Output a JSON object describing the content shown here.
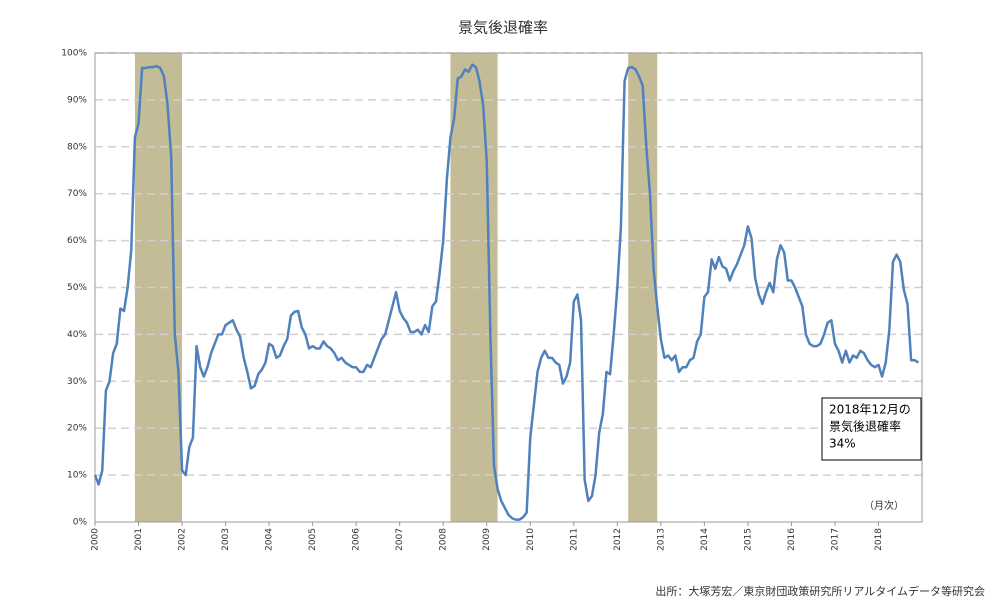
{
  "chart_data": {
    "type": "line",
    "title": "景気後退確率",
    "categories": [
      "2000",
      null,
      null,
      null,
      null,
      null,
      null,
      null,
      null,
      null,
      null,
      null,
      "2001",
      null,
      null,
      null,
      null,
      null,
      null,
      null,
      null,
      null,
      null,
      null,
      "2002",
      null,
      null,
      null,
      null,
      null,
      null,
      null,
      null,
      null,
      null,
      null,
      "2003",
      null,
      null,
      null,
      null,
      null,
      null,
      null,
      null,
      null,
      null,
      null,
      "2004",
      null,
      null,
      null,
      null,
      null,
      null,
      null,
      null,
      null,
      null,
      null,
      "2005",
      null,
      null,
      null,
      null,
      null,
      null,
      null,
      null,
      null,
      null,
      null,
      "2006",
      null,
      null,
      null,
      null,
      null,
      null,
      null,
      null,
      null,
      null,
      null,
      "2007",
      null,
      null,
      null,
      null,
      null,
      null,
      null,
      null,
      null,
      null,
      null,
      "2008",
      null,
      null,
      null,
      null,
      null,
      null,
      null,
      null,
      null,
      null,
      null,
      "2009",
      null,
      null,
      null,
      null,
      null,
      null,
      null,
      null,
      null,
      null,
      null,
      "2010",
      null,
      null,
      null,
      null,
      null,
      null,
      null,
      null,
      null,
      null,
      null,
      "2011",
      null,
      null,
      null,
      null,
      null,
      null,
      null,
      null,
      null,
      null,
      null,
      "2012",
      null,
      null,
      null,
      null,
      null,
      null,
      null,
      null,
      null,
      null,
      null,
      "2013",
      null,
      null,
      null,
      null,
      null,
      null,
      null,
      null,
      null,
      null,
      null,
      "2014",
      null,
      null,
      null,
      null,
      null,
      null,
      null,
      null,
      null,
      null,
      null,
      "2015",
      null,
      null,
      null,
      null,
      null,
      null,
      null,
      null,
      null,
      null,
      null,
      "2016",
      null,
      null,
      null,
      null,
      null,
      null,
      null,
      null,
      null,
      null,
      null,
      "2017",
      null,
      null,
      null,
      null,
      null,
      null,
      null,
      null,
      null,
      null,
      null,
      "2018",
      null,
      null,
      null,
      null,
      null,
      null,
      null,
      null,
      null,
      null,
      null
    ],
    "series": [
      {
        "color": "#4f81bd",
        "values": [
          10,
          8,
          11,
          28,
          30,
          36,
          38,
          45.5,
          45,
          50,
          58,
          82,
          85,
          96.8,
          96.8,
          97,
          97,
          97.2,
          96.8,
          95,
          89,
          78,
          40,
          32,
          11,
          10,
          16,
          18,
          37.5,
          33,
          31,
          33,
          36,
          38,
          40,
          40,
          42,
          42.5,
          43,
          41,
          39.5,
          35,
          32,
          28.5,
          29,
          31.5,
          32.5,
          34,
          38,
          37.5,
          35,
          35.5,
          37.5,
          39,
          44,
          44.8,
          45,
          41.5,
          40,
          37,
          37.5,
          37,
          37,
          38.5,
          37.5,
          37,
          36,
          34.5,
          35,
          34,
          33.5,
          33,
          33,
          32,
          32,
          33.5,
          33,
          35,
          37,
          39,
          40,
          43,
          46,
          49,
          45,
          43.5,
          42.5,
          40.5,
          40.5,
          41,
          40,
          42,
          40.5,
          46,
          47,
          53,
          60,
          73,
          82,
          86,
          94.5,
          95,
          96.5,
          96,
          97.5,
          97,
          94,
          89,
          77,
          40,
          12,
          7,
          4.5,
          3,
          1.5,
          0.8,
          0.5,
          0.5,
          1,
          2,
          18,
          25,
          32,
          35,
          36.5,
          35,
          35,
          34,
          33.5,
          29.5,
          31,
          34,
          47,
          48.5,
          43,
          9,
          4.5,
          5.5,
          10,
          19,
          23,
          32,
          31.5,
          40,
          50,
          63,
          94,
          96.8,
          97,
          96.5,
          95,
          93,
          80,
          70,
          54,
          46,
          39,
          35,
          35.5,
          34.5,
          35.5,
          32,
          33,
          33,
          34.5,
          35,
          38.5,
          40,
          48,
          49,
          56,
          54,
          56.5,
          54.5,
          54,
          51.5,
          53.5,
          55,
          57,
          59,
          63,
          60.5,
          52,
          48.5,
          46.5,
          49,
          51,
          49,
          56,
          59,
          57.5,
          51.5,
          51.5,
          50,
          48,
          46,
          40,
          38,
          37.5,
          37.5,
          38,
          40,
          42.5,
          43,
          38,
          36.5,
          34,
          36.5,
          34,
          35.5,
          35,
          36.5,
          36,
          34.5,
          33.5,
          33,
          33.5,
          31,
          34,
          41,
          55.5,
          57,
          55.5,
          49.5,
          46.5,
          34.5,
          34.5,
          34
        ]
      }
    ],
    "recessions": [
      [
        11,
        24
      ],
      [
        98,
        111
      ],
      [
        147,
        155
      ]
    ],
    "recession_color": "#c4bc96",
    "ylim": [
      0,
      100
    ],
    "yticks": [
      {
        "value": 0,
        "label": "0%"
      },
      {
        "value": 10,
        "label": "10%"
      },
      {
        "value": 20,
        "label": "20%"
      },
      {
        "value": 30,
        "label": "30%"
      },
      {
        "value": 40,
        "label": "40%"
      },
      {
        "value": 50,
        "label": "50%"
      },
      {
        "value": 60,
        "label": "60%"
      },
      {
        "value": 70,
        "label": "70%"
      },
      {
        "value": 80,
        "label": "80%"
      },
      {
        "value": 90,
        "label": "90%"
      },
      {
        "value": 100,
        "label": "100%"
      }
    ],
    "grid": true,
    "annotation": [
      "2018年12月の",
      "景気後退確率",
      "34%"
    ],
    "note": "（月次）",
    "source": "出所：大塚芳宏／東京財団政策研究所リアルタイムデータ等研究会"
  }
}
